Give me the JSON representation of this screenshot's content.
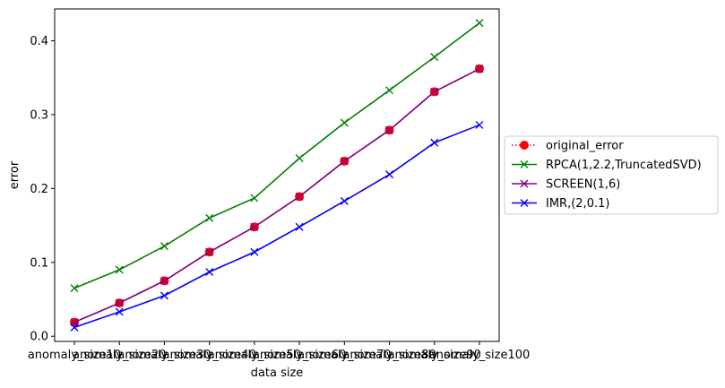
{
  "chart_data": {
    "type": "line",
    "xlabel": "data size",
    "ylabel": "error",
    "categories": [
      "anomaly_size10",
      "anomaly_size20",
      "anomaly_size30",
      "anomaly_size40",
      "anomaly_size50",
      "anomaly_size60",
      "anomaly_size70",
      "anomaly_size80",
      "anomaly_size90",
      "anomaly_size100"
    ],
    "yticks": [
      "0.0",
      "0.1",
      "0.2",
      "0.3",
      "0.4"
    ],
    "ylim": [
      -0.007,
      0.443
    ],
    "grid": false,
    "legend_position": "right-outside",
    "series": [
      {
        "name": "original_error",
        "color": "#ff0000",
        "marker": "circle",
        "linestyle": "dotted",
        "values": [
          0.019,
          0.045,
          0.075,
          0.114,
          0.148,
          0.189,
          0.237,
          0.279,
          0.331,
          0.362
        ]
      },
      {
        "name": "RPCA(1,2.2,TruncatedSVD)",
        "color": "#008000",
        "marker": "x",
        "linestyle": "solid",
        "values": [
          0.065,
          0.09,
          0.122,
          0.16,
          0.187,
          0.241,
          0.289,
          0.333,
          0.378,
          0.424
        ]
      },
      {
        "name": "SCREEN(1,6)",
        "color": "#800080",
        "marker": "x",
        "linestyle": "solid",
        "values": [
          0.019,
          0.045,
          0.075,
          0.114,
          0.148,
          0.189,
          0.237,
          0.279,
          0.331,
          0.362
        ]
      },
      {
        "name": "IMR,(2,0.1)",
        "color": "#0000ff",
        "marker": "x",
        "linestyle": "solid",
        "values": [
          0.012,
          0.033,
          0.055,
          0.087,
          0.114,
          0.148,
          0.183,
          0.219,
          0.262,
          0.286
        ]
      }
    ]
  }
}
